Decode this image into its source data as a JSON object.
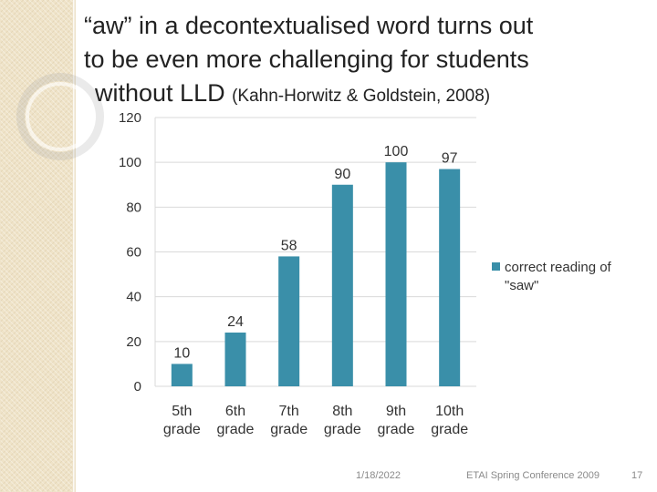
{
  "slide": {
    "title_lines": [
      "“aw” in a decontextualised word turns out",
      "to be even more challenging for students",
      "without  LLD"
    ],
    "citation": "(Kahn-Horwitz & Goldstein, 2008)",
    "footer_date": "1/18/2022",
    "footer_conference": "ETAI Spring Conference 2009",
    "page_number": "17"
  },
  "colors": {
    "bar": "#3a8fa9",
    "gridline": "#d9d9d9",
    "left_band": "#efe3c8"
  },
  "chart_data": {
    "type": "bar",
    "categories": [
      [
        "5th",
        "grade"
      ],
      [
        "6th",
        "grade"
      ],
      [
        "7th",
        "grade"
      ],
      [
        "8th",
        "grade"
      ],
      [
        "9th",
        "grade"
      ],
      [
        "10th",
        "grade"
      ]
    ],
    "series": [
      {
        "name": "correct reading of \"saw\"",
        "values": [
          10,
          24,
          58,
          90,
          100,
          97
        ]
      }
    ],
    "y_ticks": [
      0,
      20,
      40,
      60,
      80,
      100,
      120
    ],
    "ylim": [
      0,
      120
    ],
    "grid": true,
    "legend": "right",
    "legend_lines": [
      "correct reading of",
      "\"saw\""
    ]
  }
}
